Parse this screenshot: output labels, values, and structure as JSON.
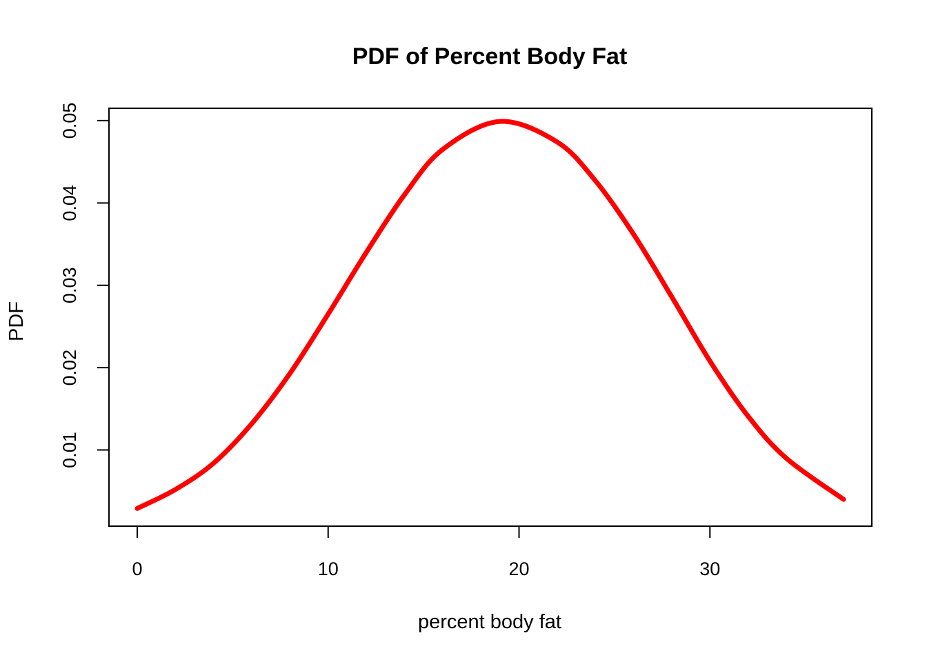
{
  "chart_data": {
    "type": "line",
    "title": "PDF of Percent Body Fat",
    "xlabel": "percent body fat",
    "ylabel": "PDF",
    "xlim": [
      -1.48,
      38.48
    ],
    "ylim": [
      0.00075,
      0.0515
    ],
    "x_ticks": [
      0,
      10,
      20,
      30
    ],
    "x_tick_labels": [
      "0",
      "10",
      "20",
      "30"
    ],
    "y_ticks": [
      0.01,
      0.02,
      0.03,
      0.04,
      0.05
    ],
    "y_tick_labels": [
      "0.01",
      "0.02",
      "0.03",
      "0.04",
      "0.05"
    ],
    "grid": false,
    "legend": "none",
    "series": [
      {
        "color": "#ff0000",
        "x": [
          0,
          2,
          4,
          6,
          8,
          10,
          12,
          14,
          16,
          19,
          22,
          24,
          26,
          28,
          30,
          32,
          34,
          37
        ],
        "y": [
          0.0029,
          0.0052,
          0.0084,
          0.0132,
          0.0193,
          0.0265,
          0.034,
          0.041,
          0.0465,
          0.0499,
          0.0474,
          0.0427,
          0.0362,
          0.0286,
          0.0208,
          0.0141,
          0.009,
          0.004
        ]
      }
    ]
  }
}
